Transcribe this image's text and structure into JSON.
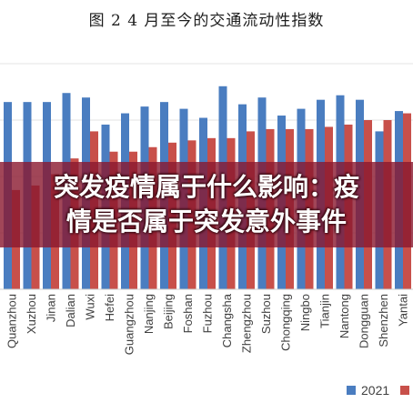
{
  "colors": {
    "background": "#ffffff",
    "banner": "#8a182e",
    "banner_text": "#ffffff",
    "grid": "#e3e3e3"
  },
  "banner": {
    "line1": "突发疫情属于什么影响：疫",
    "line2": "情是否属于突发意外事件"
  },
  "chart_data": {
    "type": "bar",
    "title": "图 2 4 月至今的交通流动性指数",
    "xlabel": "",
    "ylabel": "",
    "categories": [
      "Quanzhou",
      "Xuzhou",
      "Jinan",
      "Dalian",
      "Wuxi",
      "Hefei",
      "Guangzhou",
      "Nanjing",
      "Beijing",
      "Foshan",
      "Fuzhou",
      "Changsha",
      "Zhengzhou",
      "Suzhou",
      "Chongqing",
      "Ningbo",
      "Tianjin",
      "Nantong",
      "Dongguan",
      "Shenzhen",
      "Yantai"
    ],
    "series": [
      {
        "name": "2021",
        "color": "#4a7dc0",
        "values": [
          83,
          83,
          83,
          87,
          85,
          73,
          78,
          81,
          83,
          80,
          76,
          90,
          82,
          85,
          77,
          80,
          84,
          86,
          84,
          70,
          79
        ]
      },
      {
        "name": "",
        "color": "#c8504a",
        "values": [
          44,
          46,
          51,
          58,
          70,
          61,
          61,
          63,
          65,
          66,
          67,
          67,
          70,
          71,
          71,
          71,
          72,
          73,
          75,
          75,
          78
        ]
      }
    ],
    "ylim": [
      0,
      100
    ],
    "grid": true,
    "legend": "bottom-right"
  }
}
